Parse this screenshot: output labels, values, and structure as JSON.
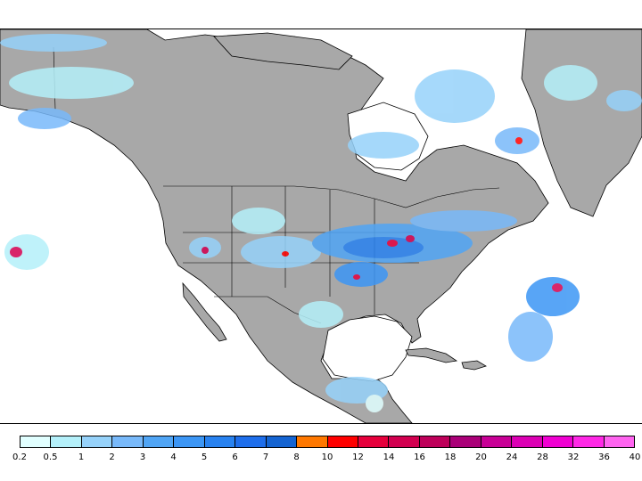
{
  "map": {
    "land_color": "#a8a8a8",
    "water_color": "#ffffff",
    "outline_color": "#000000"
  },
  "legend": {
    "colors": [
      "#e1ffff",
      "#b4f0fa",
      "#96d2fa",
      "#78b9fa",
      "#50a5f5",
      "#3c96f5",
      "#2882f0",
      "#1e6eeb",
      "#1464d2",
      "#ff7800",
      "#ff0000",
      "#e6003c",
      "#d20050",
      "#be005a",
      "#aa0078",
      "#c80096",
      "#dc00b4",
      "#f000d2",
      "#ff28e6",
      "#ff64f0"
    ],
    "labels": [
      "0.2",
      "0.5",
      "1",
      "2",
      "3",
      "4",
      "5",
      "6",
      "7",
      "8",
      "10",
      "12",
      "14",
      "16",
      "18",
      "20",
      "24",
      "28",
      "32",
      "36",
      "40"
    ]
  }
}
